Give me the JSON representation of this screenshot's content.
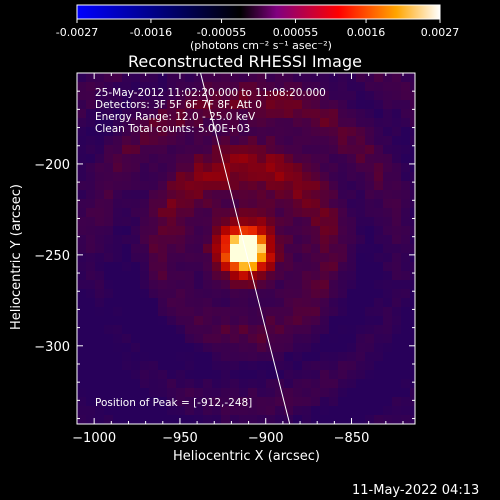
{
  "colorbar": {
    "ticks": [
      "-0.0027",
      "-0.0016",
      "-0.00055",
      "0.00055",
      "0.0016",
      "0.0027"
    ],
    "unit_label": "(photons cm⁻² s⁻¹ asec⁻²)",
    "range": [
      -0.0027,
      0.0027
    ],
    "colors": [
      "#0000ff",
      "#000000",
      "#800080",
      "#ff0000",
      "#ffa500",
      "#ffffff"
    ]
  },
  "chart_data": {
    "type": "heatmap",
    "title": "Reconstructed RHESSI Image",
    "xlabel": "Heliocentric X (arcsec)",
    "ylabel": "Heliocentric Y (arcsec)",
    "xlim": [
      -1010,
      -813
    ],
    "ylim": [
      -343,
      -150
    ],
    "xticks": [
      -1000,
      -950,
      -900,
      -850
    ],
    "yticks": [
      -200,
      -250,
      -300
    ],
    "xtick_labels": [
      "−1000",
      "−950",
      "−900",
      "−850"
    ],
    "ytick_labels": [
      "−200",
      "−250",
      "−300"
    ],
    "peak": {
      "x": -912,
      "y": -248,
      "value": 0.0027
    },
    "limb_line": [
      [
        -938,
        -150
      ],
      [
        -886,
        -343
      ]
    ],
    "info_lines": [
      "25-May-2012 11:02:20.000 to 11:08:20.000",
      "Detectors: 3F 5F 6F 7F 8F, Att 0",
      "Energy Range: 12.0 - 25.0 keV",
      "Clean    Total counts: 5.00E+03"
    ],
    "peak_label": "Position of Peak = [-912,-248]"
  },
  "footer": {
    "timestamp": "11-May-2022 04:13"
  }
}
